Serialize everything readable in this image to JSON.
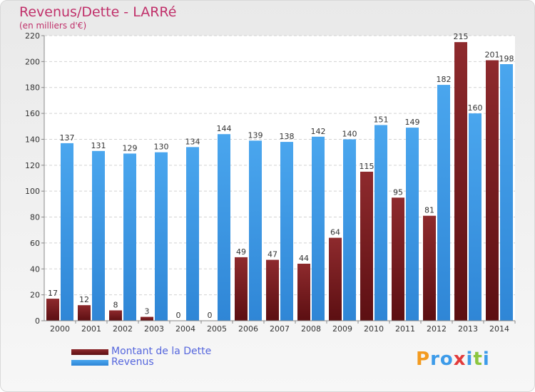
{
  "header": {
    "title": "Revenus/Dette - LARRé",
    "subtitle": "(en milliers d'€)"
  },
  "chart_data": {
    "type": "bar",
    "categories": [
      "2000",
      "2001",
      "2002",
      "2003",
      "2004",
      "2005",
      "2006",
      "2007",
      "2008",
      "2009",
      "2010",
      "2011",
      "2012",
      "2013",
      "2014"
    ],
    "series": [
      {
        "name": "Montant de la Dette",
        "color": "#7a1f22",
        "values": [
          17,
          12,
          8,
          3,
          0,
          0,
          49,
          47,
          44,
          64,
          115,
          95,
          81,
          215,
          201
        ]
      },
      {
        "name": "Revenus",
        "color": "#3d9be9",
        "values": [
          137,
          131,
          129,
          130,
          134,
          144,
          139,
          138,
          142,
          140,
          151,
          149,
          182,
          160,
          198
        ]
      }
    ],
    "yticks": [
      0,
      20,
      40,
      60,
      80,
      100,
      120,
      140,
      160,
      180,
      200,
      220
    ],
    "ylim": [
      0,
      220
    ],
    "grid": true,
    "legend_position": "bottom-left"
  },
  "logo": {
    "letters": [
      "P",
      "r",
      "o",
      "x",
      "i",
      "t",
      "i"
    ],
    "colors": [
      "#f39a1f",
      "#3d9be9",
      "#3d9be9",
      "#e23b3b",
      "#3d9be9",
      "#8cc63f",
      "#3d9be9"
    ]
  }
}
